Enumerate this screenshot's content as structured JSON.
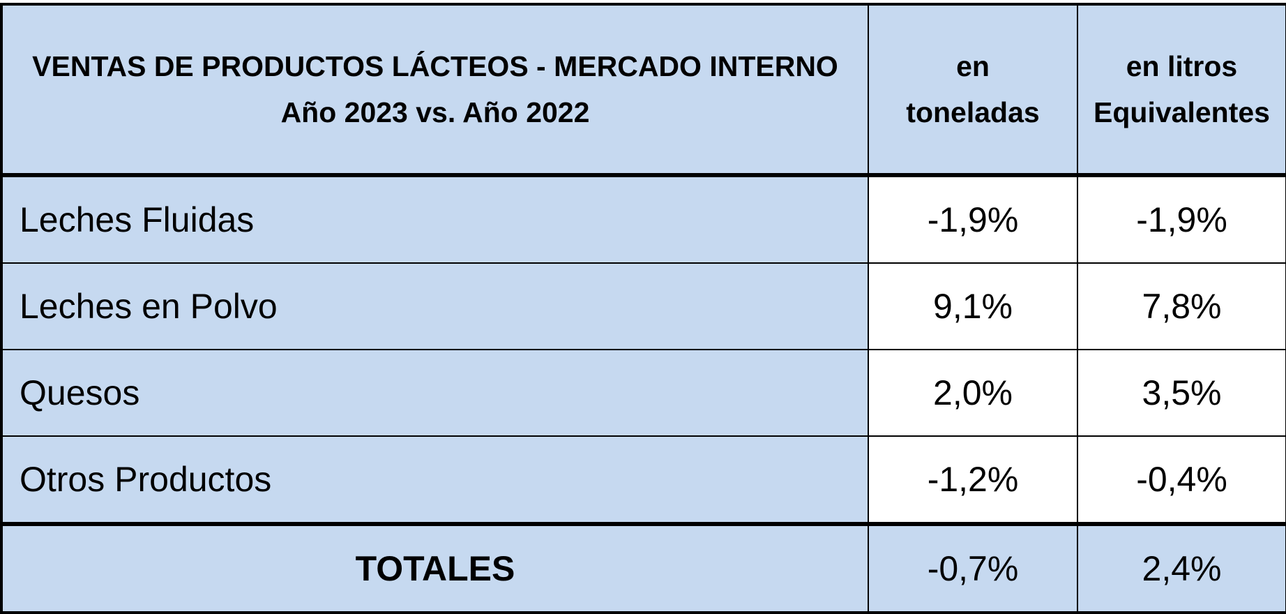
{
  "table": {
    "header": {
      "title_line1": "VENTAS DE PRODUCTOS LÁCTEOS - MERCADO INTERNO",
      "title_line2": "Año 2023 vs. Año 2022",
      "col_tons_line1": "en",
      "col_tons_line2": "toneladas",
      "col_liters_line1": "en litros",
      "col_liters_line2": "Equivalentes"
    },
    "rows": [
      {
        "label": "Leches Fluidas",
        "tons": "-1,9%",
        "liters": "-1,9%"
      },
      {
        "label": "Leches en Polvo",
        "tons": "9,1%",
        "liters": "7,8%"
      },
      {
        "label": "Quesos",
        "tons": "2,0%",
        "liters": "3,5%"
      },
      {
        "label": "Otros Productos",
        "tons": "-1,2%",
        "liters": "-0,4%"
      }
    ],
    "total": {
      "label": "TOTALES",
      "tons": "-0,7%",
      "liters": "2,4%"
    }
  },
  "colors": {
    "header_background": "#c6d9f0",
    "label_background": "#c6d9f0",
    "value_background": "#ffffff",
    "border": "#000000"
  }
}
